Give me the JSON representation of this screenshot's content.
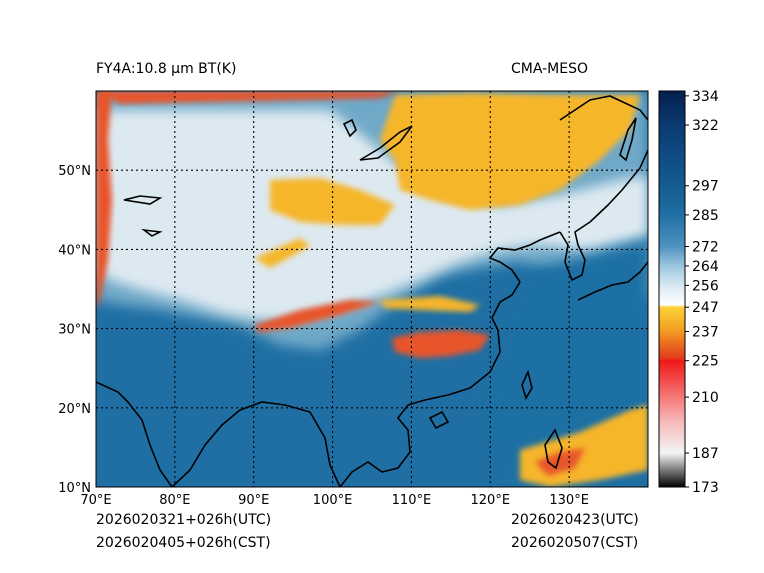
{
  "header": {
    "left_title": "FY4A:10.8 µm BT(K)",
    "right_title": "CMA-MESO"
  },
  "footer": {
    "init_utc": "2026020321+026h(UTC)",
    "init_cst": "2026020405+026h(CST)",
    "valid_utc": "2026020423(UTC)",
    "valid_cst": "2026020507(CST)"
  },
  "map": {
    "lon_range": [
      70,
      140
    ],
    "lat_range": [
      10,
      60
    ],
    "x_ticks": [
      {
        "lon": 70,
        "label": "70°E"
      },
      {
        "lon": 80,
        "label": "80°E"
      },
      {
        "lon": 90,
        "label": "90°E"
      },
      {
        "lon": 100,
        "label": "100°E"
      },
      {
        "lon": 110,
        "label": "110°E"
      },
      {
        "lon": 120,
        "label": "120°E"
      },
      {
        "lon": 130,
        "label": "130°E"
      }
    ],
    "y_ticks": [
      {
        "lat": 10,
        "label": "10°N"
      },
      {
        "lat": 20,
        "label": "20°N"
      },
      {
        "lat": 30,
        "label": "30°N"
      },
      {
        "lat": 40,
        "label": "40°N"
      },
      {
        "lat": 50,
        "label": "50°N"
      }
    ],
    "colors": {
      "warm_ocean": "#1f6fa4",
      "land_mid": "#6fa9c8",
      "cloud_light": "#dde9f1",
      "high_cloud": "#f6b62a",
      "deep_cloud": "#e8542c",
      "coastline": "#000000"
    }
  },
  "colorbar": {
    "min": 173,
    "max": 336,
    "ticks": [
      "334",
      "322",
      "297",
      "285",
      "272",
      "264",
      "256",
      "247",
      "237",
      "225",
      "210",
      "187",
      "173"
    ],
    "stops": [
      {
        "value": 173,
        "color": "#000000"
      },
      {
        "value": 187,
        "color": "#f5f5f5"
      },
      {
        "value": 200,
        "color": "#f7b8b8"
      },
      {
        "value": 225,
        "color": "#f01818"
      },
      {
        "value": 226,
        "color": "#e23a1c"
      },
      {
        "value": 237,
        "color": "#f39a20"
      },
      {
        "value": 247,
        "color": "#fbd23a"
      },
      {
        "value": 248,
        "color": "#ffffff"
      },
      {
        "value": 256,
        "color": "#d7e8f3"
      },
      {
        "value": 264,
        "color": "#9cc6df"
      },
      {
        "value": 272,
        "color": "#4e93c0"
      },
      {
        "value": 285,
        "color": "#1f6fa4"
      },
      {
        "value": 297,
        "color": "#145c8f"
      },
      {
        "value": 322,
        "color": "#0a3a72"
      },
      {
        "value": 336,
        "color": "#041f4e"
      }
    ]
  }
}
